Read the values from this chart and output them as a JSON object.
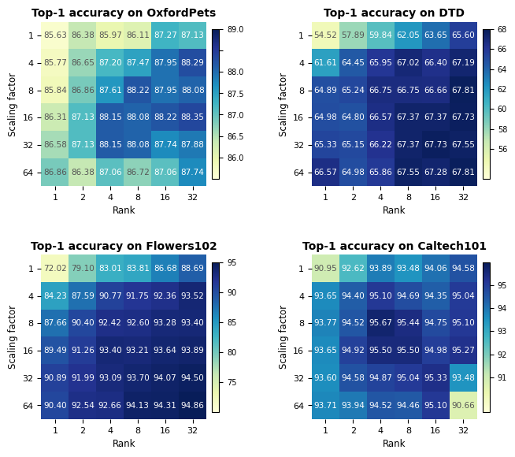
{
  "datasets": [
    {
      "title": "Top-1 accuracy on OxfordPets",
      "values": [
        [
          85.63,
          86.38,
          85.97,
          86.11,
          87.27,
          87.13
        ],
        [
          85.77,
          86.65,
          87.2,
          87.47,
          87.95,
          88.29
        ],
        [
          85.84,
          86.86,
          87.61,
          88.22,
          87.95,
          88.08
        ],
        [
          86.31,
          87.13,
          88.15,
          88.08,
          88.22,
          88.35
        ],
        [
          86.58,
          87.13,
          88.15,
          88.08,
          87.74,
          87.88
        ],
        [
          86.86,
          86.38,
          87.06,
          86.72,
          87.06,
          87.74
        ]
      ],
      "vmin": 85.5,
      "vmax": 89.0,
      "cbar_ticks": [
        86.0,
        86.5,
        87.0,
        87.5,
        88.0,
        88.5,
        89.0
      ],
      "cbar_tick_labels": [
        "86.0",
        "86.5",
        "87.0",
        "87.5",
        "88.0",
        "",
        "89.0"
      ]
    },
    {
      "title": "Top-1 accuracy on DTD",
      "values": [
        [
          54.52,
          57.89,
          59.84,
          62.05,
          63.65,
          65.6
        ],
        [
          61.61,
          64.45,
          65.95,
          67.02,
          66.4,
          67.19
        ],
        [
          64.89,
          65.24,
          66.75,
          66.75,
          66.66,
          67.81
        ],
        [
          64.98,
          64.8,
          66.57,
          67.37,
          67.37,
          67.73
        ],
        [
          65.33,
          65.15,
          66.22,
          67.37,
          67.73,
          67.55
        ],
        [
          66.57,
          64.98,
          65.86,
          67.55,
          67.28,
          67.81
        ]
      ],
      "vmin": 53.0,
      "vmax": 68.0,
      "cbar_ticks": [
        56,
        58,
        60,
        62,
        64,
        66,
        68
      ],
      "cbar_tick_labels": [
        "56",
        "58",
        "60",
        "62",
        "64",
        "66",
        "68"
      ]
    },
    {
      "title": "Top-1 accuracy on Flowers102",
      "values": [
        [
          72.02,
          79.1,
          83.01,
          83.81,
          86.68,
          88.69
        ],
        [
          84.23,
          87.59,
          90.77,
          91.75,
          92.36,
          93.52
        ],
        [
          87.66,
          90.4,
          92.42,
          92.6,
          93.28,
          93.4
        ],
        [
          89.49,
          91.26,
          93.4,
          93.21,
          93.64,
          93.89
        ],
        [
          90.89,
          91.99,
          93.09,
          93.7,
          94.07,
          94.5
        ],
        [
          90.4,
          92.54,
          92.66,
          94.13,
          94.31,
          94.86
        ]
      ],
      "vmin": 70.0,
      "vmax": 95.0,
      "cbar_ticks": [
        75,
        80,
        85,
        90,
        95
      ],
      "cbar_tick_labels": [
        "75",
        "80",
        "85",
        "90",
        "95"
      ]
    },
    {
      "title": "Top-1 accuracy on Caltech101",
      "values": [
        [
          90.95,
          92.62,
          93.89,
          93.48,
          94.06,
          94.58
        ],
        [
          93.65,
          94.4,
          95.1,
          94.69,
          94.35,
          95.04
        ],
        [
          93.77,
          94.52,
          95.67,
          95.44,
          94.75,
          95.1
        ],
        [
          93.65,
          94.92,
          95.5,
          95.5,
          94.98,
          95.27
        ],
        [
          93.6,
          94.58,
          94.87,
          95.04,
          95.33,
          93.48
        ],
        [
          93.71,
          93.94,
          94.52,
          94.46,
          95.1,
          90.66
        ]
      ],
      "vmin": 89.5,
      "vmax": 96.0,
      "cbar_ticks": [
        91,
        92,
        93,
        94,
        95
      ],
      "cbar_tick_labels": [
        "91",
        "92",
        "93",
        "94",
        "95"
      ]
    }
  ],
  "row_labels": [
    "1",
    "4",
    "8",
    "16",
    "32",
    "64"
  ],
  "col_labels": [
    "1",
    "2",
    "4",
    "8",
    "16",
    "32"
  ],
  "xlabel": "Rank",
  "ylabel": "Scaling factor",
  "cmap": "YlGnBu",
  "fontsize_title": 10,
  "fontsize_annot": 7.5,
  "fontsize_axis": 8.5,
  "fontsize_tick": 8,
  "fontsize_cbar": 7
}
